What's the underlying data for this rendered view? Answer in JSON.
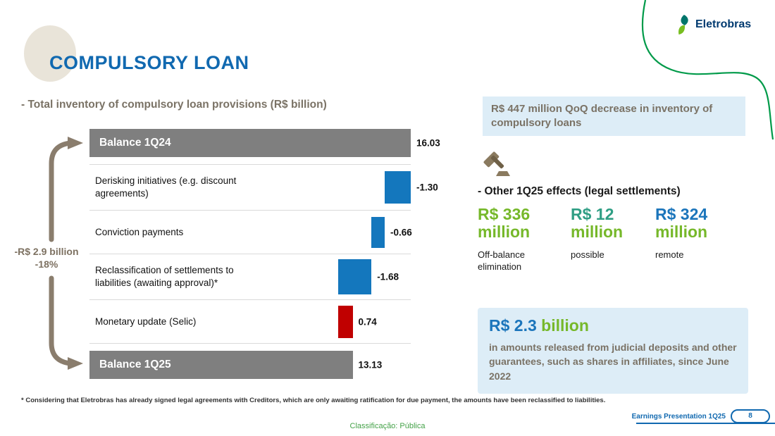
{
  "slide": {
    "title": "COMPULSORY LOAN",
    "subtitle": "- Total inventory of compulsory loan provisions (R$ billion)",
    "footnote": "* Considering that Eletrobras has already signed legal agreements with Creditors, which are only awaiting ratification for due payment, the amounts have been reclassified to liabilities.",
    "classification": "Classificação: Pública",
    "footer": {
      "label": "Earnings Presentation 1Q25",
      "page_number": "8"
    },
    "logo_text": "Eletrobras"
  },
  "highlight_box": {
    "text": "R$ 447 million QoQ decrease in inventory of compulsory loans"
  },
  "chart_data": {
    "type": "bar",
    "subtype": "waterfall",
    "title": "Total inventory of compulsory loan provisions",
    "unit": "R$ billion",
    "categories": [
      "Balance 1Q24",
      "Derisking initiatives (e.g. discount agreements)",
      "Conviction payments",
      "Reclassification of settlements to liabilities (awaiting approval)*",
      "Monetary update (Selic)",
      "Balance 1Q25"
    ],
    "values": [
      16.03,
      -1.3,
      -0.66,
      -1.68,
      0.74,
      13.13
    ],
    "value_labels": [
      "16.03",
      "-1.30",
      "-0.66",
      "-1.68",
      "0.74",
      "13.13"
    ],
    "bar_colors": [
      "#7f7f7f",
      "#1477bd",
      "#1477bd",
      "#1477bd",
      "#c00000",
      "#7f7f7f"
    ],
    "xlim": [
      0,
      16.03
    ],
    "orientation": "horizontal",
    "annotation": {
      "line1": "-R$ 2.9 billion",
      "line2": "-18%"
    }
  },
  "other_effects": {
    "heading": "- Other 1Q25 effects (legal settlements)",
    "items": [
      {
        "amount": "R$ 336",
        "unit": "million",
        "label": "Off-balance elimination",
        "amount_color": "#76b82a",
        "unit_color": "#76b82a"
      },
      {
        "amount": "R$ 12",
        "unit": "million",
        "label": "possible",
        "amount_color": "#2f9e84",
        "unit_color": "#76b82a"
      },
      {
        "amount": "R$ 324",
        "unit": "million",
        "label": "remote",
        "amount_color": "#1b75bb",
        "unit_color": "#76b82a"
      }
    ]
  },
  "released_box": {
    "amount": "R$ 2.3",
    "unit": "billion",
    "amount_color": "#1b75bb",
    "unit_color": "#76b82a",
    "text": "in amounts released from judicial deposits and other guarantees, such as shares in affiliates, since June 2022"
  }
}
